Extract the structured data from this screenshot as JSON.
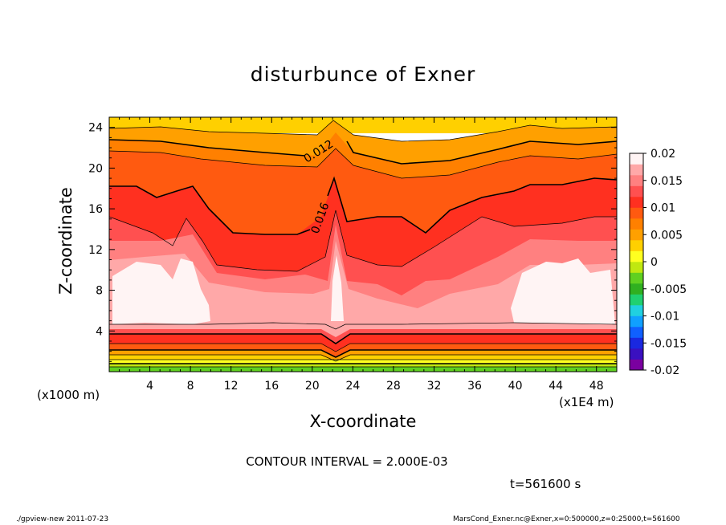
{
  "chart_data": {
    "type": "heatmap",
    "title": "disturbunce of Exner",
    "xlabel": "X-coordinate",
    "ylabel": "Z-coordinate",
    "x_unit_label": "(x1000 m)",
    "x_scale_label": "(x1E4 m)",
    "xlim": [
      0,
      50
    ],
    "ylim": [
      0,
      25
    ],
    "x_ticks": [
      "4",
      "8",
      "12",
      "16",
      "20",
      "24",
      "28",
      "32",
      "36",
      "40",
      "44",
      "48"
    ],
    "y_ticks": [
      "4",
      "8",
      "12",
      "16",
      "20",
      "24"
    ],
    "colorbar": {
      "ticks": [
        "0.02",
        "0.015",
        "0.01",
        "0.005",
        "0",
        "-0.005",
        "-0.01",
        "-0.015",
        "-0.02"
      ],
      "colors": [
        "#7a00a0",
        "#3a10c0",
        "#1a28e0",
        "#1060ff",
        "#10a0ff",
        "#20d0e0",
        "#20d070",
        "#30b020",
        "#60d020",
        "#c0e810",
        "#ffff20",
        "#ffd000",
        "#ffa000",
        "#ff8000",
        "#ff5a10",
        "#ff3020",
        "#ff5050",
        "#ff8080",
        "#ffa8a8",
        "#fff4f4"
      ]
    },
    "contour_labels": [
      "0.012",
      "0.016"
    ],
    "contour_interval": "CONTOUR INTERVAL = 2.000E-03"
  },
  "annotations": {
    "time": "t=561600 s",
    "footer_left": "./gpview-new   2011-07-23",
    "footer_right": "MarsCond_Exner.nc@Exner,x=0:500000,z=0:25000,t=561600"
  }
}
